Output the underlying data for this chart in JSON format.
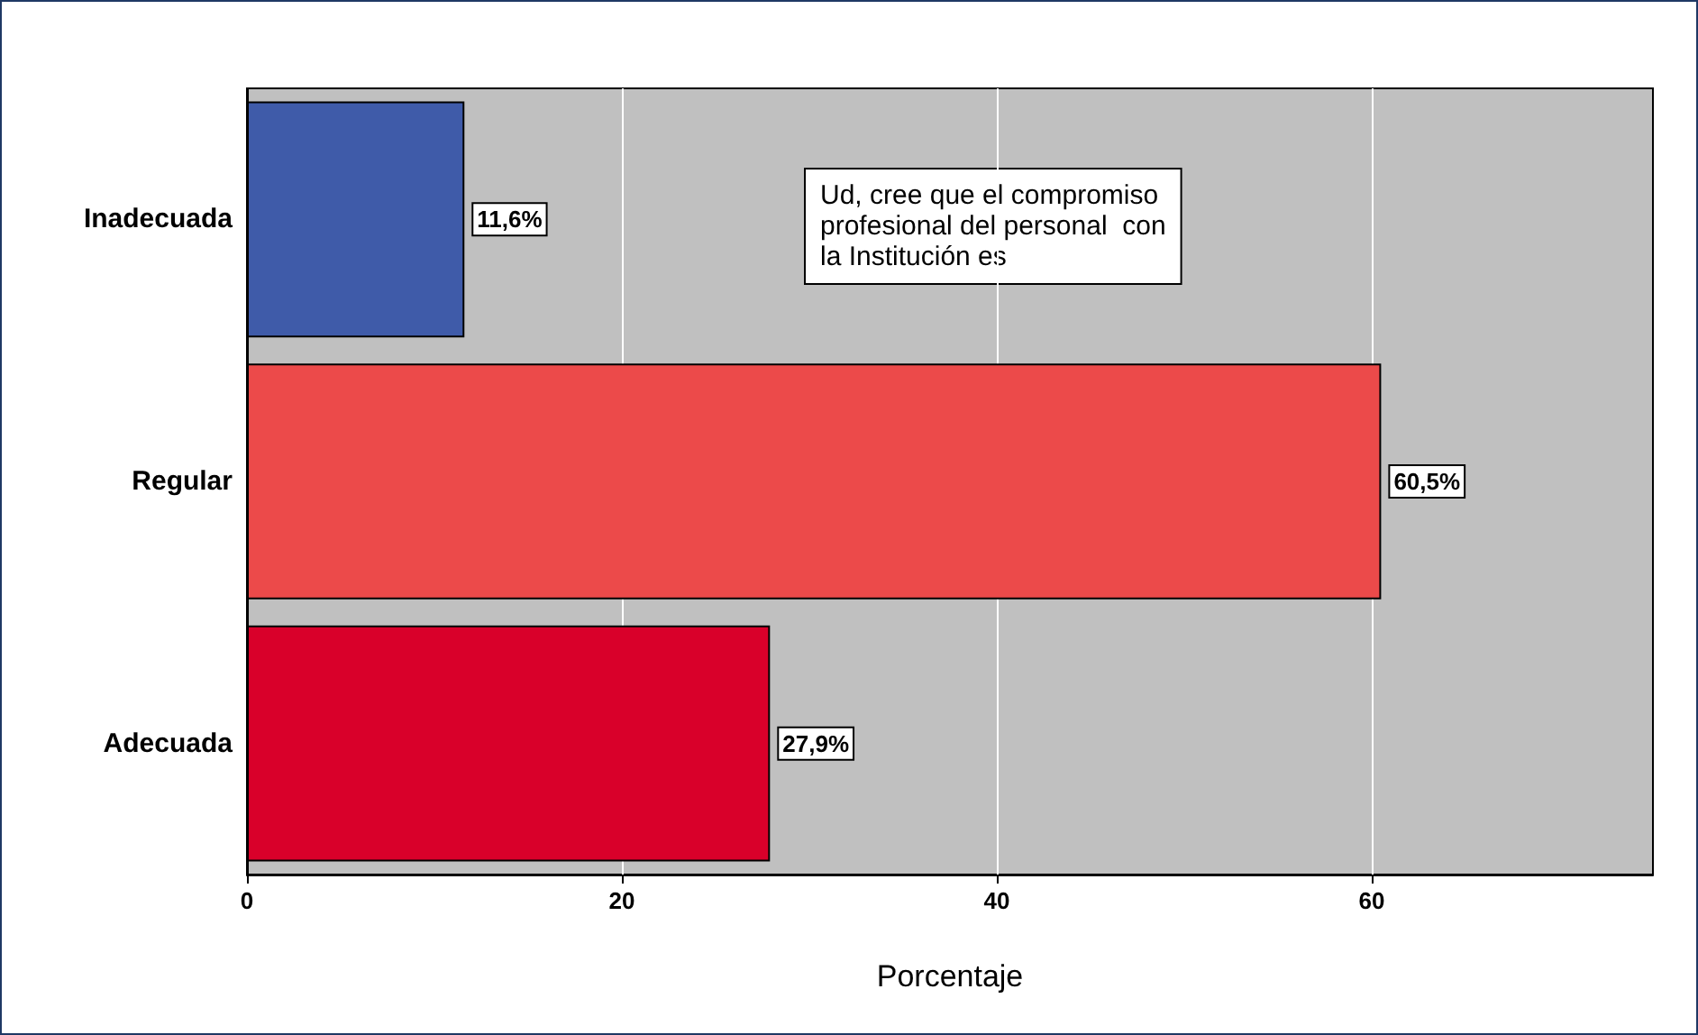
{
  "chart_data": {
    "type": "bar",
    "orientation": "horizontal",
    "xlabel": "Porcentaje",
    "categories": [
      "Inadecuada",
      "Regular",
      "Adecuada"
    ],
    "values": [
      11.6,
      60.5,
      27.9
    ],
    "colors": [
      "#3f5ba9",
      "#ec4a4a",
      "#d9002a"
    ],
    "value_labels": [
      "11,6%",
      "60,5%",
      "27,9%"
    ],
    "xlim": [
      0,
      75
    ],
    "xticks": [
      0,
      20,
      40,
      60
    ],
    "grid": "x",
    "annotations": [
      "Ud, cree que el compromiso\nprofesional del personal  con\nla Institución es"
    ]
  }
}
